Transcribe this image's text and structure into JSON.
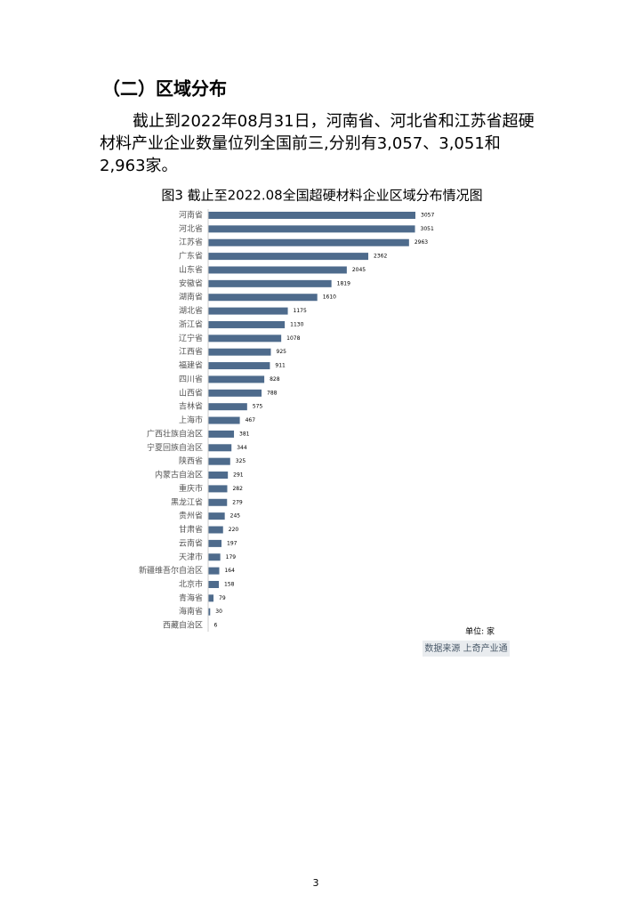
{
  "heading": "（二）区域分布",
  "paragraph": [
    "截止到2022年08月31日，河南省、河北省和江苏省超硬",
    "材料产业企业数量位列全国前三,分别有3,057、3,051和",
    "2,963家。"
  ],
  "chart_data": {
    "type": "bar",
    "orientation": "horizontal",
    "title": "图3 截止至2022.08全国超硬材料企业区域分布情况图",
    "categories": [
      "河南省",
      "河北省",
      "江苏省",
      "广东省",
      "山东省",
      "安徽省",
      "湖南省",
      "湖北省",
      "浙江省",
      "辽宁省",
      "江西省",
      "福建省",
      "四川省",
      "山西省",
      "吉林省",
      "上海市",
      "广西壮族自治区",
      "宁夏回族自治区",
      "陕西省",
      "内蒙古自治区",
      "重庆市",
      "黑龙江省",
      "贵州省",
      "甘肃省",
      "云南省",
      "天津市",
      "新疆维吾尔自治区",
      "北京市",
      "青海省",
      "海南省",
      "西藏自治区"
    ],
    "values": [
      3057,
      3051,
      2963,
      2362,
      2045,
      1819,
      1610,
      1175,
      1130,
      1078,
      925,
      911,
      828,
      788,
      575,
      467,
      381,
      344,
      325,
      291,
      282,
      279,
      245,
      220,
      197,
      179,
      164,
      158,
      79,
      30,
      6
    ],
    "color": "#4e6b8c",
    "unit": "单位: 家",
    "source": "数据来源 上奇产业通"
  },
  "page_number": "3"
}
